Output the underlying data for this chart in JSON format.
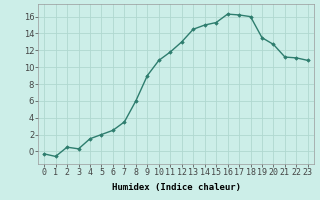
{
  "x": [
    0,
    1,
    2,
    3,
    4,
    5,
    6,
    7,
    8,
    9,
    10,
    11,
    12,
    13,
    14,
    15,
    16,
    17,
    18,
    19,
    20,
    21,
    22,
    23
  ],
  "y": [
    -0.3,
    -0.6,
    0.5,
    0.3,
    1.5,
    2.0,
    2.5,
    3.5,
    6.0,
    9.0,
    10.8,
    11.8,
    13.0,
    14.5,
    15.0,
    15.3,
    16.3,
    16.2,
    16.0,
    13.5,
    12.7,
    11.2,
    11.1,
    10.8
  ],
  "line_color": "#2e7d6e",
  "marker": "D",
  "markersize": 1.8,
  "linewidth": 1.0,
  "bg_color": "#cceee8",
  "grid_color": "#b0d8d0",
  "xlabel": "Humidex (Indice chaleur)",
  "xlim": [
    -0.5,
    23.5
  ],
  "ylim": [
    -1.5,
    17.5
  ],
  "yticks": [
    0,
    2,
    4,
    6,
    8,
    10,
    12,
    14,
    16
  ],
  "xtick_labels": [
    "0",
    "1",
    "2",
    "3",
    "4",
    "5",
    "6",
    "7",
    "8",
    "9",
    "10",
    "11",
    "12",
    "13",
    "14",
    "15",
    "16",
    "17",
    "18",
    "19",
    "20",
    "21",
    "22",
    "23"
  ],
  "xlabel_fontsize": 6.5,
  "tick_fontsize": 6.0
}
